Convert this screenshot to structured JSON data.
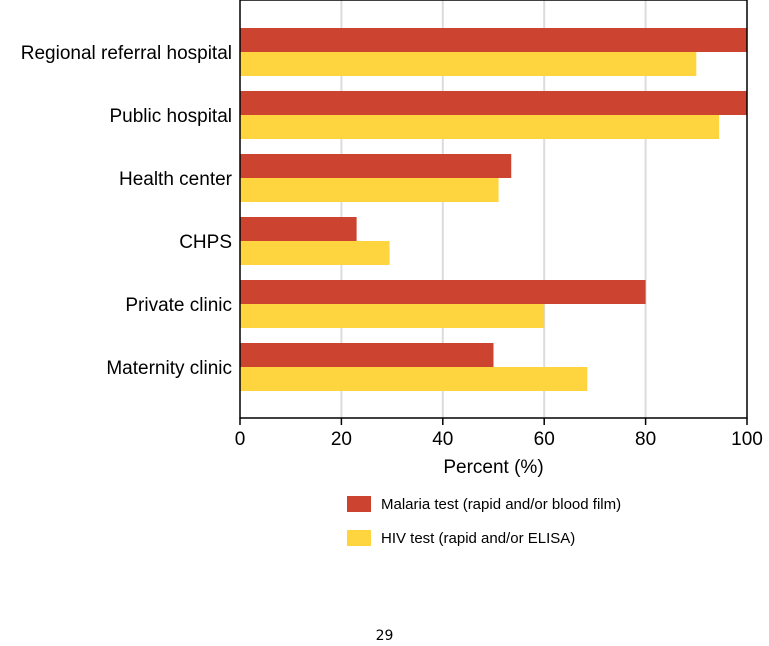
{
  "chart_data": {
    "type": "bar",
    "orientation": "horizontal",
    "categories": [
      "Regional referral hospital",
      "Public hospital",
      "Health center",
      "CHPS",
      "Private clinic",
      "Maternity clinic"
    ],
    "series": [
      {
        "name": "Malaria test (rapid and/or blood film)",
        "color": "#cc4430",
        "values": [
          100,
          100,
          53.5,
          23,
          80,
          50
        ]
      },
      {
        "name": "HIV test (rapid and/or ELISA)",
        "color": "#ffd53f",
        "values": [
          90,
          94.5,
          51,
          29.5,
          60,
          68.5
        ]
      }
    ],
    "xlabel": "Percent (%)",
    "xlim": [
      0,
      100
    ],
    "xticks": [
      "0",
      "20",
      "40",
      "60",
      "80",
      "100"
    ],
    "grid": "vertical",
    "legend_position": "bottom"
  },
  "page_number": "29"
}
